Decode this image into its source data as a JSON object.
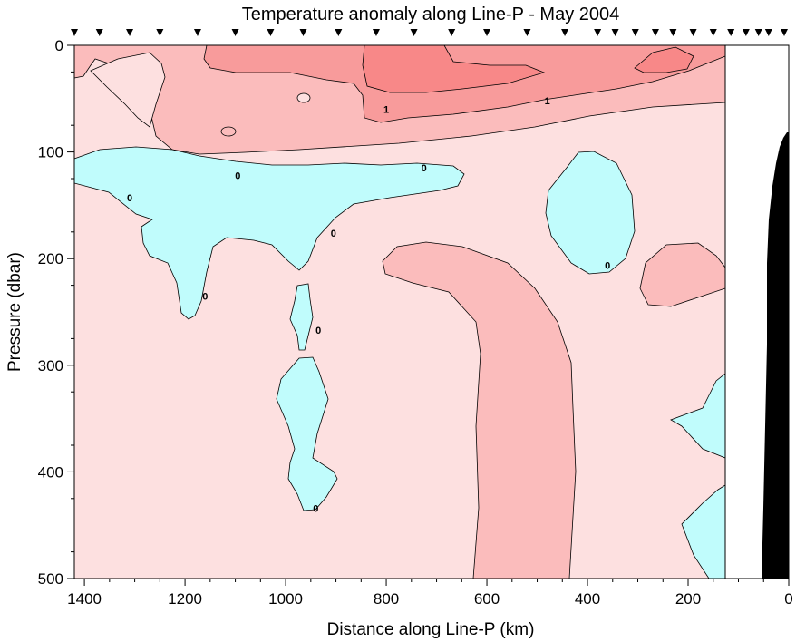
{
  "chart_data": {
    "type": "contour",
    "title": "Temperature anomaly along Line-P - May 2004",
    "xlabel": "Distance along Line-P (km)",
    "ylabel": "Pressure (dbar)",
    "xlim": [
      1420,
      0
    ],
    "ylim": [
      0,
      500
    ],
    "x_reversed": true,
    "y_reversed": true,
    "x_ticks": [
      1400,
      1200,
      1000,
      800,
      600,
      400,
      200,
      0
    ],
    "y_ticks": [
      0,
      100,
      200,
      300,
      400,
      500
    ],
    "contour_levels": [
      0,
      1
    ],
    "contour_labels": [
      {
        "text": "1",
        "x": 800,
        "y": 60
      },
      {
        "text": "1",
        "x": 480,
        "y": 52
      },
      {
        "text": "0",
        "x": 1095,
        "y": 122
      },
      {
        "text": "0",
        "x": 725,
        "y": 115
      },
      {
        "text": "0",
        "x": 1310,
        "y": 143
      },
      {
        "text": "0",
        "x": 905,
        "y": 176
      },
      {
        "text": "0",
        "x": 360,
        "y": 206
      },
      {
        "text": "0",
        "x": 1160,
        "y": 235
      },
      {
        "text": "0",
        "x": 935,
        "y": 267
      },
      {
        "text": "0",
        "x": 940,
        "y": 434
      }
    ],
    "fill_colors": {
      "below_0": "#c0fcfc",
      "0_to_1": "#fde0e0",
      "1_to_2": "#fbbcbc",
      "above_2": "#f89b9b",
      "core": "#f88888"
    },
    "station_markers_km": [
      1420,
      1370,
      1310,
      1250,
      1175,
      1100,
      1030,
      965,
      895,
      820,
      745,
      670,
      600,
      520,
      445,
      380,
      345,
      305,
      265,
      230,
      190,
      150,
      115,
      85,
      60,
      40,
      5
    ],
    "data_limit_km": 120,
    "bathymetry_color": "#000000"
  }
}
